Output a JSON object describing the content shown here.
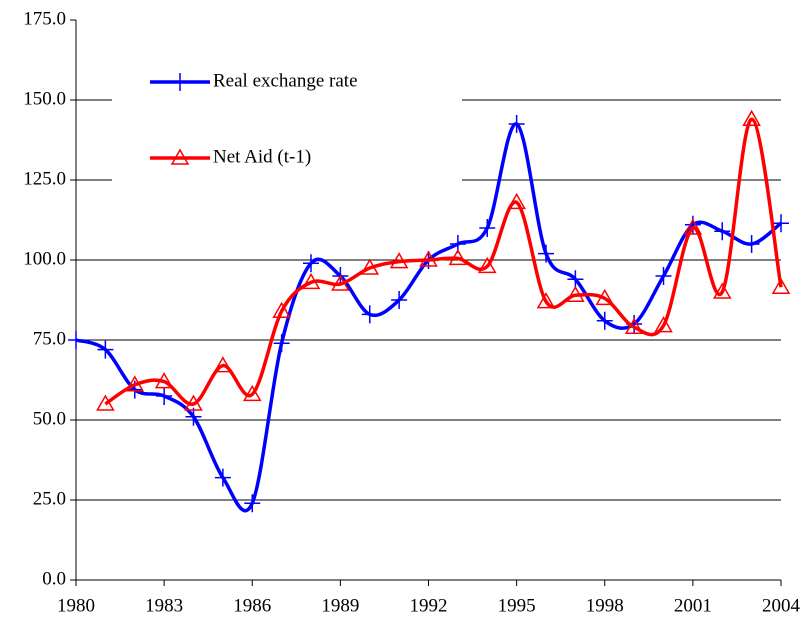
{
  "chart_data": {
    "type": "line",
    "x": [
      1980,
      1981,
      1982,
      1983,
      1984,
      1985,
      1986,
      1987,
      1988,
      1989,
      1990,
      1991,
      1992,
      1993,
      1994,
      1995,
      1996,
      1997,
      1998,
      1999,
      2000,
      2001,
      2002,
      2003,
      2004
    ],
    "series": [
      {
        "name": "Real exchange rate",
        "color": "#0000ff",
        "marker": "plus",
        "values": [
          75,
          72,
          59.5,
          57.5,
          51,
          32,
          24,
          74,
          99,
          95,
          83,
          87.5,
          100,
          105,
          110,
          142.5,
          102,
          94,
          81,
          80,
          95,
          111,
          109,
          105,
          111.5
        ]
      },
      {
        "name": "Net Aid (t-1)",
        "color": "#ff0000",
        "marker": "triangle",
        "values": [
          null,
          55,
          61,
          62,
          55,
          67,
          58,
          84,
          93,
          92.5,
          97.5,
          99.5,
          100,
          100.5,
          98,
          118,
          87,
          89,
          88,
          79,
          79.5,
          110,
          90,
          144,
          91.5
        ]
      }
    ],
    "xlim": [
      1980,
      2004
    ],
    "xticks": [
      1980,
      1983,
      1986,
      1989,
      1992,
      1995,
      1998,
      2001,
      2004
    ],
    "ylim": [
      0,
      175
    ],
    "yticks": [
      {
        "value": 0,
        "label": "0.0"
      },
      {
        "value": 25,
        "label": "25.0"
      },
      {
        "value": 50,
        "label": "50.0"
      },
      {
        "value": 75,
        "label": "75.0"
      },
      {
        "value": 100,
        "label": "100.0"
      },
      {
        "value": 125,
        "label": "125.0"
      },
      {
        "value": 150,
        "label": "150.0"
      },
      {
        "value": 175,
        "label": "175.0"
      }
    ],
    "grid": true,
    "legend": "upper left"
  }
}
